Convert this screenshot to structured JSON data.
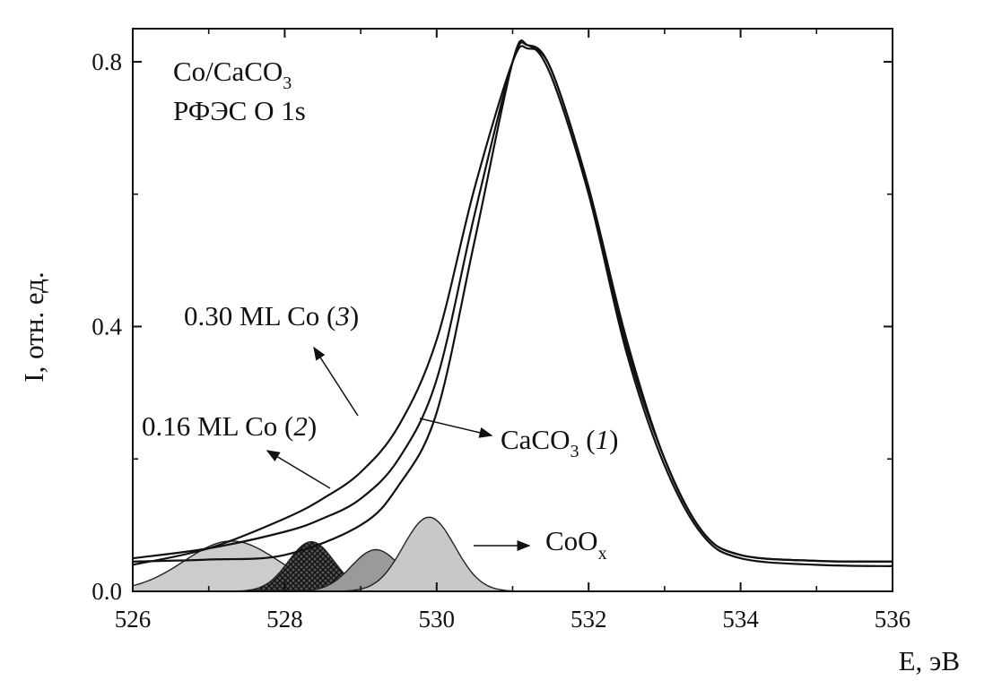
{
  "chart_data": {
    "type": "line",
    "title_lines": [
      "Co/CaCO",
      "РФЭС O 1s"
    ],
    "title_sub": "3",
    "xlabel": "E, эВ",
    "ylabel": "I, отн. ед.",
    "xlim": [
      526,
      536
    ],
    "ylim": [
      0,
      0.85
    ],
    "x_ticks": [
      "526",
      "528",
      "530",
      "532",
      "534",
      "536"
    ],
    "y_ticks": [
      "0.0",
      "0.4",
      "0.8"
    ],
    "grid": false,
    "legend": "none",
    "series": [
      {
        "label": "CaCO3 (1)",
        "x": [
          526.0,
          527.0,
          528.0,
          529.0,
          529.5,
          530.0,
          530.5,
          531.0,
          531.2,
          531.5,
          532.0,
          532.5,
          533.0,
          533.5,
          534.0,
          535.0,
          536.0
        ],
        "y": [
          0.045,
          0.048,
          0.055,
          0.1,
          0.16,
          0.27,
          0.53,
          0.8,
          0.825,
          0.78,
          0.6,
          0.36,
          0.19,
          0.085,
          0.05,
          0.04,
          0.038
        ]
      },
      {
        "label": "0.16 ML Co (2)",
        "x": [
          526.0,
          527.0,
          528.0,
          528.5,
          529.0,
          529.5,
          530.0,
          530.5,
          531.0,
          531.2,
          531.5,
          532.0,
          532.5,
          533.0,
          533.5,
          534.0,
          535.0,
          536.0
        ],
        "y": [
          0.05,
          0.065,
          0.09,
          0.11,
          0.14,
          0.2,
          0.32,
          0.57,
          0.8,
          0.825,
          0.79,
          0.61,
          0.37,
          0.2,
          0.09,
          0.055,
          0.046,
          0.045
        ]
      },
      {
        "label": "0.30 ML Co (3)",
        "x": [
          526.0,
          527.0,
          528.0,
          528.5,
          529.0,
          529.5,
          530.0,
          530.5,
          531.0,
          531.2,
          531.5,
          532.0,
          532.5,
          533.0,
          533.5,
          534.0,
          535.0,
          536.0
        ],
        "y": [
          0.04,
          0.065,
          0.11,
          0.14,
          0.18,
          0.25,
          0.38,
          0.61,
          0.8,
          0.82,
          0.79,
          0.61,
          0.38,
          0.2,
          0.09,
          0.055,
          0.046,
          0.045
        ]
      }
    ],
    "components": [
      {
        "center": 527.3,
        "amplitude": 0.076,
        "sigma": 0.62,
        "fill": "#cccccc",
        "pattern": "none"
      },
      {
        "center": 528.35,
        "amplitude": 0.075,
        "sigma": 0.3,
        "fill": "#3a3a3a",
        "pattern": "crosshatch"
      },
      {
        "center": 529.2,
        "amplitude": 0.063,
        "sigma": 0.32,
        "fill": "#9a9a9a",
        "pattern": "none"
      },
      {
        "center": 529.9,
        "amplitude": 0.112,
        "sigma": 0.34,
        "fill": "#c8c8c8",
        "pattern": "none"
      }
    ],
    "annotations": [
      {
        "text": "0.30 ML Co (",
        "italic": "3",
        "close": ")",
        "arrow_to": [
          528.45,
          0.4
        ]
      },
      {
        "text": "0.16 ML Co (",
        "italic": "2",
        "close": ")",
        "arrow_to": [
          527.8,
          0.2
        ]
      },
      {
        "text": "CaCO",
        "sub": "3",
        "rest": " (",
        "italic": "1",
        "close": ")",
        "arrow_to": [
          529.4,
          0.26
        ]
      },
      {
        "text": "CoO",
        "sub": "x",
        "arrow_to": [
          530.5,
          0.062
        ]
      }
    ]
  }
}
